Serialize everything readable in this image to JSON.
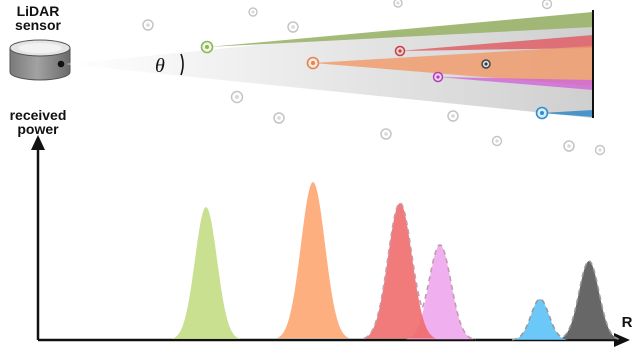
{
  "labels": {
    "sensor_line1": "LiDAR",
    "sensor_line2": "sensor",
    "angle_symbol": "θ",
    "y_axis_line1": "received",
    "y_axis_line2": "power",
    "x_axis": "R"
  },
  "colors": {
    "green": "#9ab46a",
    "orange": "#f29a6a",
    "red": "#e0545c",
    "pink": "#d066d8",
    "dark": "#555555",
    "blue": "#3a8ec8",
    "green_peak": "#c8e090",
    "orange_peak": "#fdaf80",
    "red_peak": "#ef6b6b",
    "pink_peak": "#f0b0f0",
    "blue_peak": "#6cc8f8",
    "dark_peak": "#676767",
    "particle_gray": "#c4c4c4",
    "beam_gray": "#d6d6d6"
  }
}
